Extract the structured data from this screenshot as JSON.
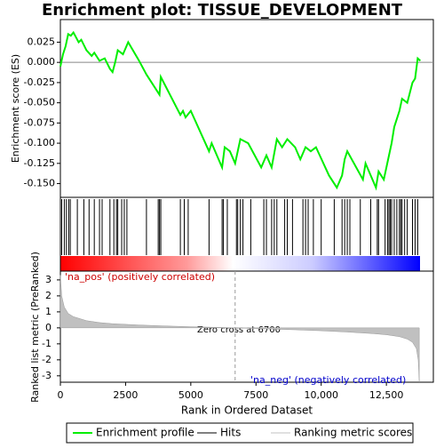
{
  "chart_data": {
    "type": "line",
    "title": "Enrichment plot: TISSUE_DEVELOPMENT",
    "ylabel": "Enrichment score (ES)",
    "y2label": "Ranked list metric (PreRanked)",
    "xlabel": "Rank in Ordered Dataset",
    "pos_label": "'na_pos' (positively correlated)",
    "neg_label": "'na_neg' (negatively correlated)",
    "annotation": "Zero cross at 6700",
    "zero_cross": 6700,
    "xlim": [
      0,
      14300
    ],
    "xticks": [
      0,
      2500,
      5000,
      7500,
      {
        "value": 10000,
        "label": "10,000"
      },
      {
        "value": 12500,
        "label": "12,500"
      }
    ],
    "ylim": [
      -0.167,
      0.053
    ],
    "yticks": [
      0.025,
      {
        "value": 0,
        "label": "0.000"
      },
      -0.025,
      {
        "value": -0.05,
        "label": "-0.050"
      },
      -0.075,
      {
        "value": -0.1,
        "label": "-0.100"
      },
      -0.125,
      {
        "value": -0.15,
        "label": "-0.150"
      }
    ],
    "y2lim": [
      -3.4,
      3.55
    ],
    "y2ticks": [
      3,
      2,
      1,
      0,
      -1,
      -2,
      -3
    ],
    "series": [
      {
        "name": "Enrichment profile",
        "color": "#00ee00",
        "x": [
          0,
          100,
          200,
          300,
          400,
          500,
          700,
          800,
          1000,
          1200,
          1300,
          1500,
          1700,
          1900,
          2000,
          2100,
          2200,
          2400,
          2600,
          3000,
          3300,
          3800,
          3850,
          4600,
          4700,
          4800,
          5000,
          5700,
          5800,
          6200,
          6300,
          6500,
          6700,
          6900,
          7200,
          7700,
          7900,
          8100,
          8300,
          8500,
          8700,
          9000,
          9200,
          9400,
          9600,
          9800,
          10300,
          10600,
          10800,
          10900,
          11000,
          11600,
          11700,
          12100,
          12200,
          12400,
          12500,
          12700,
          12800,
          13000,
          13100,
          13300,
          13500,
          13600,
          13700,
          13800
        ],
        "values": [
          -0.005,
          0.01,
          0.02,
          0.035,
          0.033,
          0.037,
          0.025,
          0.028,
          0.015,
          0.008,
          0.012,
          0.002,
          0.005,
          -0.008,
          -0.012,
          0.0,
          0.015,
          0.01,
          0.025,
          0.003,
          -0.015,
          -0.04,
          -0.018,
          -0.065,
          -0.06,
          -0.068,
          -0.06,
          -0.11,
          -0.1,
          -0.13,
          -0.105,
          -0.11,
          -0.125,
          -0.095,
          -0.1,
          -0.13,
          -0.115,
          -0.13,
          -0.095,
          -0.105,
          -0.095,
          -0.105,
          -0.12,
          -0.105,
          -0.11,
          -0.105,
          -0.14,
          -0.155,
          -0.14,
          -0.12,
          -0.11,
          -0.145,
          -0.125,
          -0.155,
          -0.135,
          -0.145,
          -0.13,
          -0.1,
          -0.08,
          -0.06,
          -0.045,
          -0.05,
          -0.025,
          -0.02,
          0.005,
          0.002
        ]
      },
      {
        "name": "Hits",
        "color": "#000000",
        "x": [
          50,
          150,
          230,
          320,
          380,
          650,
          900,
          1100,
          1300,
          1500,
          1600,
          1900,
          2050,
          2150,
          2200,
          2350,
          2450,
          2550,
          3300,
          3750,
          3800,
          3850,
          4600,
          4750,
          4900,
          5700,
          6200,
          6250,
          6400,
          6750,
          6800,
          6900,
          7000,
          7300,
          7800,
          7900,
          8100,
          8200,
          8300,
          8600,
          8700,
          8900,
          9300,
          9400,
          9500,
          9700,
          10000,
          10500,
          10800,
          10900,
          11000,
          11100,
          11500,
          11900,
          12150,
          12200,
          12450,
          12550,
          12600,
          12650,
          12700,
          12800,
          12900,
          13000,
          13050,
          13100,
          13200,
          13300,
          13500,
          13600,
          13700
        ]
      },
      {
        "name": "Ranking metric scores",
        "color": "#c0c0c0",
        "x": [
          0,
          50,
          150,
          300,
          500,
          1000,
          1500,
          2000,
          3000,
          4000,
          5000,
          6000,
          6700,
          8000,
          9000,
          10000,
          11000,
          12000,
          12500,
          13000,
          13300,
          13500,
          13650,
          13720,
          13760
        ],
        "values": [
          3.3,
          2.0,
          1.3,
          0.9,
          0.7,
          0.45,
          0.33,
          0.26,
          0.18,
          0.12,
          0.07,
          0.03,
          0.0,
          -0.07,
          -0.12,
          -0.18,
          -0.26,
          -0.36,
          -0.43,
          -0.55,
          -0.7,
          -0.9,
          -1.3,
          -2.0,
          -3.4
        ]
      }
    ]
  }
}
